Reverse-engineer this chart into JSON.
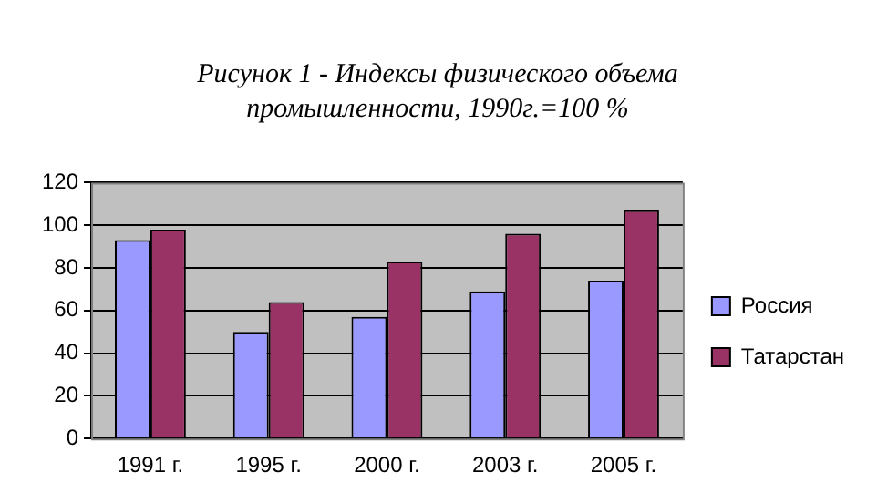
{
  "chart_data": {
    "type": "bar",
    "title": "Рисунок 1 - Индексы физического объема промышленности, 1990г.=100 %",
    "categories": [
      "1991 г.",
      "1995 г.",
      "2000 г.",
      "2003 г.",
      "2005 г."
    ],
    "series": [
      {
        "name": "Россия",
        "color": "#9999ff",
        "values": [
          93,
          50,
          57,
          69,
          74
        ]
      },
      {
        "name": "Татарстан",
        "color": "#993366",
        "values": [
          98,
          64,
          83,
          96,
          107
        ]
      }
    ],
    "ylim": [
      0,
      120
    ],
    "yticks": [
      0,
      20,
      40,
      60,
      80,
      100,
      120
    ],
    "grid": "y",
    "legend": "right"
  }
}
